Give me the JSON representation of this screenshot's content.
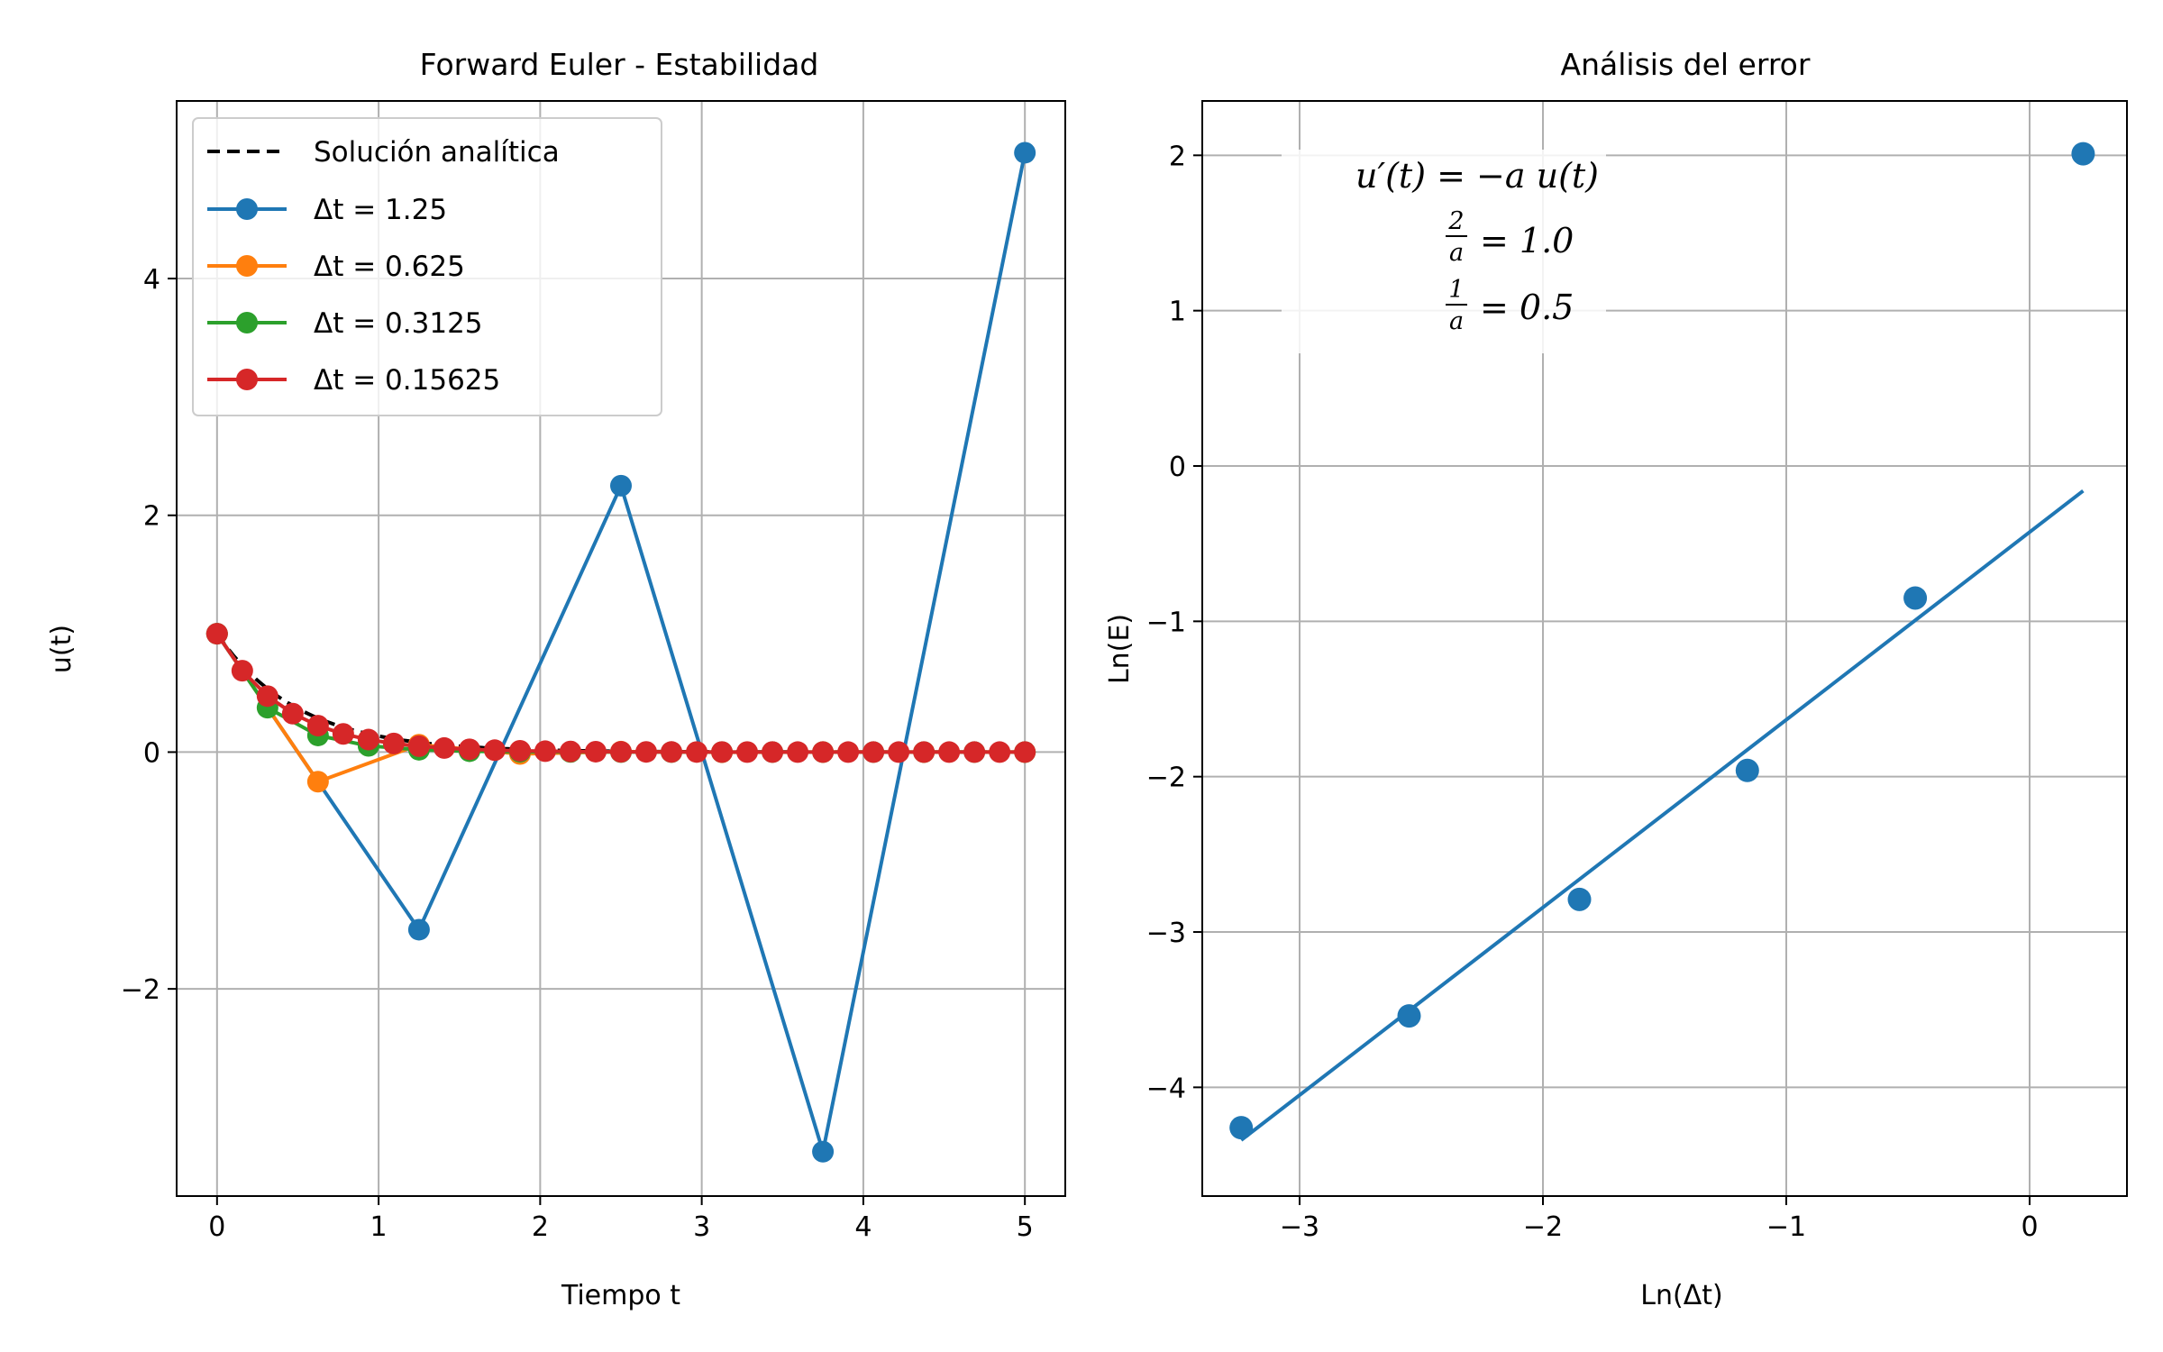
{
  "chart_data": [
    {
      "type": "line",
      "title": "Forward Euler - Estabilidad",
      "xlabel": "Tiempo t",
      "ylabel": "u(t)",
      "xlim": [
        -0.25,
        5.25
      ],
      "ylim": [
        -3.75,
        5.5
      ],
      "xticks": [
        0,
        1,
        2,
        3,
        4,
        5
      ],
      "yticks": [
        -2,
        0,
        2,
        4
      ],
      "grid": true,
      "legend_position": "top-left",
      "analytic": {
        "name": "Solución analítica",
        "color": "#000000",
        "style": "dashed",
        "rate": 2,
        "t_range": [
          0,
          5
        ]
      },
      "series": [
        {
          "name": "Δt = 1.25",
          "color": "#1f77b4",
          "x": [
            0,
            1.25,
            2.5,
            3.75,
            5
          ],
          "y": [
            1,
            -1.5,
            2.25,
            -3.375,
            5.0625
          ]
        },
        {
          "name": "Δt = 0.625",
          "color": "#ff7f0e",
          "x": [
            0,
            0.625,
            1.25,
            1.875,
            2.5,
            3.125,
            3.75,
            4.375,
            5
          ],
          "y": [
            1,
            -0.25,
            0.0625,
            -0.0156,
            0.0039,
            -0.001,
            0.0002,
            -0.0001,
            0
          ]
        },
        {
          "name": "Δt = 0.3125",
          "color": "#2ca02c",
          "x": [
            0,
            0.3125,
            0.625,
            0.9375,
            1.25,
            1.5625,
            1.875,
            2.1875,
            2.5,
            2.8125,
            3.125,
            3.4375,
            3.75,
            4.0625,
            4.375,
            4.6875,
            5
          ],
          "y": [
            1,
            0.375,
            0.1406,
            0.0527,
            0.0198,
            0.0074,
            0.0028,
            0.001,
            0.0004,
            0.0001,
            0.0001,
            0,
            0,
            0,
            0,
            0,
            0
          ]
        },
        {
          "name": "Δt = 0.15625",
          "color": "#d62728",
          "x": [
            0,
            0.15625,
            0.3125,
            0.46875,
            0.625,
            0.78125,
            0.9375,
            1.09375,
            1.25,
            1.40625,
            1.5625,
            1.71875,
            1.875,
            2.03125,
            2.1875,
            2.34375,
            2.5,
            2.65625,
            2.8125,
            2.96875,
            3.125,
            3.28125,
            3.4375,
            3.59375,
            3.75,
            3.90625,
            4.0625,
            4.21875,
            4.375,
            4.53125,
            4.6875,
            4.84375,
            5
          ],
          "y": [
            1,
            0.6875,
            0.4727,
            0.325,
            0.2234,
            0.1536,
            0.1056,
            0.0726,
            0.0499,
            0.0343,
            0.0236,
            0.0162,
            0.0112,
            0.0077,
            0.0053,
            0.0036,
            0.0025,
            0.0017,
            0.0012,
            0.0008,
            0.0006,
            0.0004,
            0.0003,
            0.0002,
            0.0001,
            0.0001,
            0.0001,
            0,
            0,
            0,
            0,
            0,
            0
          ]
        }
      ]
    },
    {
      "type": "scatter",
      "title": "Análisis del error",
      "xlabel": "Ln(Δt)",
      "ylabel": "Ln(E)",
      "xlim": [
        -3.4,
        0.4
      ],
      "ylim": [
        -4.7,
        2.35
      ],
      "xticks": [
        -3,
        -2,
        -1,
        0
      ],
      "yticks": [
        -4,
        -3,
        -2,
        -1,
        0,
        1,
        2
      ],
      "grid": true,
      "points": {
        "color": "#1f77b4",
        "x": [
          -3.24,
          -2.55,
          -1.85,
          -1.16,
          -0.47,
          0.22
        ],
        "y": [
          -4.26,
          -3.54,
          -2.79,
          -1.96,
          -0.85,
          2.01
        ]
      },
      "fit_line": {
        "color": "#1f77b4",
        "x": [
          -3.24,
          0.22
        ],
        "y": [
          -4.34,
          -0.16
        ]
      },
      "annotation": {
        "line1": "u′(t) = −a u(t)",
        "line2_num": "2",
        "line2_den": "a",
        "line2_value": "= 1.0",
        "line3_num": "1",
        "line3_den": "a",
        "line3_value": "= 0.5"
      }
    }
  ]
}
